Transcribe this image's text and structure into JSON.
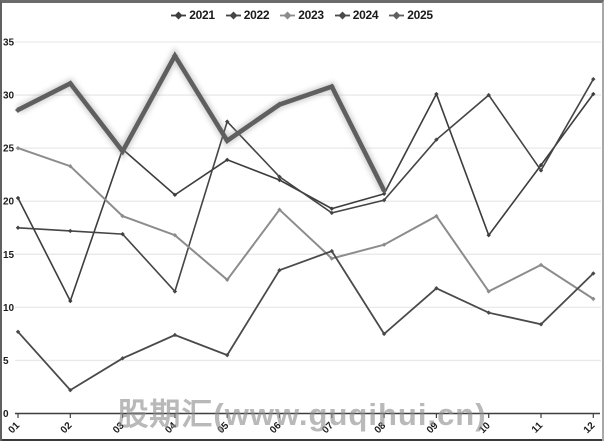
{
  "watermark": {
    "text": "股期汇(www.guqihui.cn)"
  },
  "chart_data": {
    "type": "line",
    "title": "",
    "xlabel": "",
    "ylabel": "",
    "categories": [
      "01",
      "02",
      "03",
      "04",
      "05",
      "06",
      "07",
      "08",
      "09",
      "10",
      "11",
      "12"
    ],
    "yticks": [
      "0",
      "5",
      "10",
      "15",
      "20",
      "25",
      "30",
      "35"
    ],
    "ylim": [
      0,
      35
    ],
    "ytick_step": 5,
    "grid": true,
    "legend_position": "top",
    "series": [
      {
        "name": "2021",
        "color": "#3d3d3d",
        "width": 1.6,
        "highlight": false,
        "values": [
          20.3,
          10.6,
          24.9,
          20.6,
          23.9,
          22.0,
          19.3,
          20.7,
          30.1,
          16.8,
          23.4,
          30.1
        ]
      },
      {
        "name": "2022",
        "color": "#454545",
        "width": 1.6,
        "highlight": false,
        "values": [
          17.5,
          17.2,
          16.9,
          11.5,
          27.5,
          22.3,
          18.9,
          20.1,
          25.8,
          30.0,
          22.9,
          31.5
        ]
      },
      {
        "name": "2023",
        "color": "#8c8c8c",
        "width": 2.0,
        "highlight": false,
        "values": [
          25.0,
          23.3,
          18.6,
          16.8,
          12.6,
          19.2,
          14.6,
          15.9,
          18.6,
          11.5,
          14.0,
          10.8
        ]
      },
      {
        "name": "2024",
        "color": "#4a4a4a",
        "width": 1.8,
        "highlight": false,
        "values": [
          7.7,
          2.2,
          5.2,
          7.4,
          5.5,
          13.5,
          15.3,
          7.5,
          11.8,
          9.5,
          8.4,
          13.2
        ]
      },
      {
        "name": "2025",
        "color": "#5f5f5f",
        "width": 4.6,
        "highlight": true,
        "values": [
          28.6,
          31.1,
          24.7,
          33.7,
          25.7,
          29.1,
          30.8,
          21.0
        ]
      }
    ]
  }
}
